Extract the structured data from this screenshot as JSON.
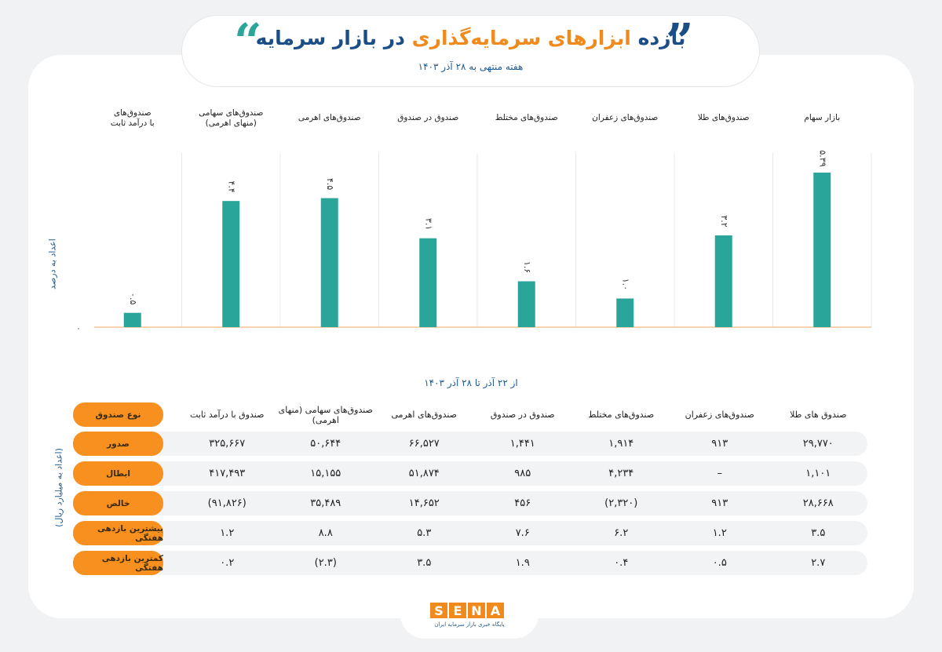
{
  "header": {
    "title_part1": "بازده",
    "title_accent": "ابزارهای سرمایه‌گذاری",
    "title_part2": "در بازار سرمایه",
    "subtitle": "هفته منتهی به ۲۸ آذر ۱۴۰۳"
  },
  "colors": {
    "bar": "#2aa59a",
    "baseline": "#f3a75b",
    "accent": "#f7901e",
    "header_blue": "#1b4e86"
  },
  "chart_data": {
    "type": "bar",
    "categories": [
      "بازار سهام",
      "صندوق‌های طلا",
      "صندوق‌های زعفران",
      "صندوق‌های مختلط",
      "صندوق در صندوق",
      "صندوق‌های اهرمی",
      "صندوق‌های سهامی (منهای اهرمی)",
      "صندوق‌های با درآمد ثابت"
    ],
    "category_lines": [
      [
        "بازار سهام"
      ],
      [
        "صندوق‌های طلا"
      ],
      [
        "صندوق‌های زعفران"
      ],
      [
        "صندوق‌های مختلط"
      ],
      [
        "صندوق در صندوق"
      ],
      [
        "صندوق‌های اهرمی"
      ],
      [
        "صندوق‌های سهامی",
        "(منهای اهرمی)"
      ],
      [
        "صندوق‌های",
        "با درآمد ثابت"
      ]
    ],
    "values": [
      5.39,
      3.2,
      1.0,
      1.6,
      3.1,
      4.5,
      4.4,
      0.5
    ],
    "value_labels": [
      "۵.۳۹",
      "۳.۲",
      "۱.۰",
      "۱.۶",
      "۳.۱",
      "۴.۵",
      "۴.۴",
      "۰.۵"
    ],
    "ylabel": "اعداد به درصد",
    "zero_tick": "۰",
    "ylim": [
      0,
      5.39
    ]
  },
  "table": {
    "caption": "از ۲۲ آذر تا ۲۸ آذر ۱۴۰۳",
    "side_label": "(اعداد به میلیارد ریال)",
    "header_label": "نوع صندوق",
    "columns": [
      "صندوق های طلا",
      "صندوق‌های زعفران",
      "صندوق‌های مختلط",
      "صندوق در صندوق",
      "صندوق‌های اهرمی",
      "صندوق‌های سهامی (منهای اهرمی)",
      "صندوق با درآمد ثابت"
    ],
    "rows": [
      {
        "label": "صدور",
        "values": [
          "۲۹,۷۷۰",
          "۹۱۳",
          "۱,۹۱۴",
          "۱,۴۴۱",
          "۶۶,۵۲۷",
          "۵۰,۶۴۴",
          "۳۲۵,۶۶۷"
        ]
      },
      {
        "label": "ابطال",
        "values": [
          "۱,۱۰۱",
          "–",
          "۴,۲۳۴",
          "۹۸۵",
          "۵۱,۸۷۴",
          "۱۵,۱۵۵",
          "۴۱۷,۴۹۳"
        ]
      },
      {
        "label": "خالص",
        "values": [
          "۲۸,۶۶۸",
          "۹۱۳",
          "(۲,۳۲۰)",
          "۴۵۶",
          "۱۴,۶۵۲",
          "۳۵,۴۸۹",
          "(۹۱,۸۲۶)"
        ]
      },
      {
        "label": "بیشترین بازدهی هفتگی",
        "values": [
          "۳.۵",
          "۱.۲",
          "۶.۲",
          "۷.۶",
          "۵.۳",
          "۸.۸",
          "۱.۲"
        ]
      },
      {
        "label": "کمترین بازدهی هفتگی",
        "values": [
          "۲.۷",
          "۰.۵",
          "۰.۴",
          "۱.۹",
          "۳.۵",
          "(۲.۳)",
          "۰.۲"
        ]
      }
    ]
  },
  "footer": {
    "logo_letters": [
      "S",
      "E",
      "N",
      "A"
    ],
    "logo_sub": "پایگاه خبری بازار سرمایه ایران"
  }
}
